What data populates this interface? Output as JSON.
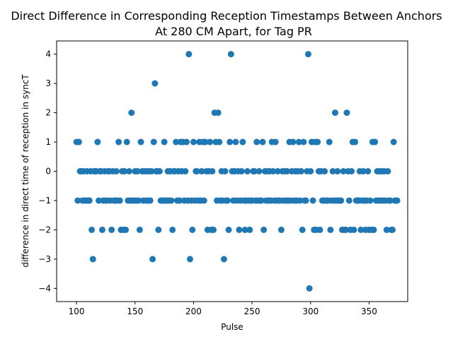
{
  "chart_data": {
    "type": "scatter",
    "title_line1": "Direct Difference in Corresponding Reception Timestamps Between Anchors",
    "title_line2": "At 280 CM Apart, for Tag PR",
    "xlabel": "Pulse",
    "ylabel": "difference in direct time of reception in syncT",
    "xlim": [
      83,
      383
    ],
    "ylim": [
      -4.45,
      4.45
    ],
    "xticks": [
      100,
      150,
      200,
      250,
      300,
      350
    ],
    "yticks": [
      -4,
      -3,
      -2,
      -1,
      0,
      1,
      2,
      3,
      4
    ],
    "grid": false,
    "marker_color": "#1f77b4",
    "points": [
      [
        100,
        1
      ],
      [
        101,
        -1
      ],
      [
        102,
        1
      ],
      [
        103,
        0
      ],
      [
        104,
        0
      ],
      [
        105,
        -1
      ],
      [
        106,
        0
      ],
      [
        107,
        -1
      ],
      [
        108,
        -1
      ],
      [
        109,
        0
      ],
      [
        110,
        -1
      ],
      [
        111,
        -1
      ],
      [
        112,
        0
      ],
      [
        113,
        -2
      ],
      [
        114,
        -3
      ],
      [
        115,
        0
      ],
      [
        116,
        0
      ],
      [
        117,
        0
      ],
      [
        118,
        1
      ],
      [
        119,
        -1
      ],
      [
        120,
        0
      ],
      [
        121,
        0
      ],
      [
        122,
        -2
      ],
      [
        123,
        -1
      ],
      [
        124,
        0
      ],
      [
        125,
        -1
      ],
      [
        126,
        -1
      ],
      [
        127,
        0
      ],
      [
        128,
        0
      ],
      [
        129,
        -1
      ],
      [
        130,
        -2
      ],
      [
        131,
        0
      ],
      [
        132,
        -1
      ],
      [
        133,
        -1
      ],
      [
        134,
        0
      ],
      [
        135,
        -1
      ],
      [
        136,
        1
      ],
      [
        137,
        -1
      ],
      [
        138,
        -2
      ],
      [
        139,
        0
      ],
      [
        140,
        -2
      ],
      [
        141,
        0
      ],
      [
        142,
        -2
      ],
      [
        143,
        1
      ],
      [
        144,
        -1
      ],
      [
        145,
        0
      ],
      [
        146,
        -1
      ],
      [
        147,
        2
      ],
      [
        148,
        -1
      ],
      [
        149,
        -1
      ],
      [
        150,
        0
      ],
      [
        151,
        -1
      ],
      [
        152,
        0
      ],
      [
        153,
        -1
      ],
      [
        154,
        -2
      ],
      [
        155,
        1
      ],
      [
        156,
        0
      ],
      [
        157,
        -1
      ],
      [
        158,
        0
      ],
      [
        159,
        -1
      ],
      [
        160,
        0
      ],
      [
        161,
        -1
      ],
      [
        162,
        0
      ],
      [
        163,
        -1
      ],
      [
        164,
        0
      ],
      [
        165,
        -3
      ],
      [
        166,
        1
      ],
      [
        167,
        3
      ],
      [
        168,
        0
      ],
      [
        169,
        0
      ],
      [
        170,
        -2
      ],
      [
        171,
        0
      ],
      [
        172,
        -1
      ],
      [
        173,
        -1
      ],
      [
        174,
        -1
      ],
      [
        175,
        1
      ],
      [
        176,
        -1
      ],
      [
        177,
        -1
      ],
      [
        178,
        0
      ],
      [
        179,
        -1
      ],
      [
        180,
        0
      ],
      [
        181,
        -1
      ],
      [
        182,
        -2
      ],
      [
        183,
        0
      ],
      [
        184,
        0
      ],
      [
        185,
        1
      ],
      [
        186,
        -1
      ],
      [
        187,
        0
      ],
      [
        188,
        -1
      ],
      [
        189,
        1
      ],
      [
        190,
        0
      ],
      [
        191,
        1
      ],
      [
        192,
        -1
      ],
      [
        193,
        0
      ],
      [
        194,
        1
      ],
      [
        195,
        -1
      ],
      [
        196,
        4
      ],
      [
        197,
        -3
      ],
      [
        198,
        -1
      ],
      [
        199,
        -2
      ],
      [
        200,
        1
      ],
      [
        201,
        -1
      ],
      [
        202,
        0
      ],
      [
        203,
        0
      ],
      [
        204,
        -1
      ],
      [
        205,
        1
      ],
      [
        206,
        -1
      ],
      [
        207,
        0
      ],
      [
        208,
        1
      ],
      [
        209,
        -1
      ],
      [
        210,
        1
      ],
      [
        211,
        0
      ],
      [
        212,
        -2
      ],
      [
        213,
        0
      ],
      [
        214,
        1
      ],
      [
        215,
        -2
      ],
      [
        216,
        0
      ],
      [
        217,
        -2
      ],
      [
        218,
        2
      ],
      [
        219,
        1
      ],
      [
        220,
        -1
      ],
      [
        221,
        2
      ],
      [
        222,
        1
      ],
      [
        223,
        -1
      ],
      [
        224,
        0
      ],
      [
        225,
        -1
      ],
      [
        226,
        -3
      ],
      [
        227,
        0
      ],
      [
        228,
        -1
      ],
      [
        229,
        -1
      ],
      [
        230,
        -2
      ],
      [
        231,
        1
      ],
      [
        232,
        4
      ],
      [
        233,
        0
      ],
      [
        234,
        -1
      ],
      [
        235,
        0
      ],
      [
        236,
        1
      ],
      [
        237,
        -1
      ],
      [
        238,
        0
      ],
      [
        239,
        -2
      ],
      [
        240,
        -1
      ],
      [
        241,
        0
      ],
      [
        242,
        1
      ],
      [
        243,
        -1
      ],
      [
        244,
        -2
      ],
      [
        245,
        -1
      ],
      [
        246,
        0
      ],
      [
        247,
        -1
      ],
      [
        248,
        -2
      ],
      [
        249,
        -1
      ],
      [
        250,
        -1
      ],
      [
        251,
        0
      ],
      [
        252,
        0
      ],
      [
        253,
        -1
      ],
      [
        254,
        1
      ],
      [
        255,
        -1
      ],
      [
        256,
        0
      ],
      [
        257,
        -1
      ],
      [
        258,
        -1
      ],
      [
        259,
        1
      ],
      [
        260,
        -2
      ],
      [
        261,
        0
      ],
      [
        262,
        -1
      ],
      [
        263,
        0
      ],
      [
        264,
        -1
      ],
      [
        265,
        0
      ],
      [
        266,
        -1
      ],
      [
        267,
        1
      ],
      [
        268,
        0
      ],
      [
        269,
        -1
      ],
      [
        270,
        1
      ],
      [
        271,
        -1
      ],
      [
        272,
        0
      ],
      [
        273,
        -1
      ],
      [
        274,
        -1
      ],
      [
        275,
        -2
      ],
      [
        276,
        0
      ],
      [
        277,
        -1
      ],
      [
        278,
        0
      ],
      [
        279,
        -1
      ],
      [
        280,
        0
      ],
      [
        281,
        -1
      ],
      [
        282,
        1
      ],
      [
        283,
        -1
      ],
      [
        284,
        0
      ],
      [
        285,
        1
      ],
      [
        286,
        -1
      ],
      [
        287,
        0
      ],
      [
        288,
        -1
      ],
      [
        289,
        0
      ],
      [
        290,
        1
      ],
      [
        291,
        -1
      ],
      [
        292,
        0
      ],
      [
        293,
        -2
      ],
      [
        294,
        1
      ],
      [
        295,
        -1
      ],
      [
        296,
        -1
      ],
      [
        297,
        0
      ],
      [
        298,
        4
      ],
      [
        299,
        -4
      ],
      [
        300,
        0
      ],
      [
        301,
        1
      ],
      [
        302,
        -1
      ],
      [
        303,
        -2
      ],
      [
        304,
        1
      ],
      [
        305,
        -2
      ],
      [
        306,
        1
      ],
      [
        307,
        0
      ],
      [
        308,
        -2
      ],
      [
        309,
        0
      ],
      [
        310,
        -1
      ],
      [
        311,
        -1
      ],
      [
        312,
        0
      ],
      [
        313,
        -1
      ],
      [
        314,
        -1
      ],
      [
        315,
        -1
      ],
      [
        316,
        1
      ],
      [
        317,
        -2
      ],
      [
        318,
        -1
      ],
      [
        319,
        0
      ],
      [
        320,
        -1
      ],
      [
        321,
        2
      ],
      [
        322,
        -1
      ],
      [
        323,
        0
      ],
      [
        324,
        -1
      ],
      [
        325,
        -1
      ],
      [
        326,
        -1
      ],
      [
        327,
        -2
      ],
      [
        328,
        0
      ],
      [
        329,
        -2
      ],
      [
        330,
        -2
      ],
      [
        331,
        2
      ],
      [
        332,
        0
      ],
      [
        333,
        -1
      ],
      [
        334,
        -2
      ],
      [
        335,
        0
      ],
      [
        336,
        1
      ],
      [
        337,
        -2
      ],
      [
        338,
        1
      ],
      [
        339,
        -1
      ],
      [
        340,
        -1
      ],
      [
        341,
        -1
      ],
      [
        342,
        0
      ],
      [
        343,
        -2
      ],
      [
        344,
        -1
      ],
      [
        345,
        0
      ],
      [
        346,
        -1
      ],
      [
        347,
        -2
      ],
      [
        348,
        -1
      ],
      [
        349,
        0
      ],
      [
        350,
        -2
      ],
      [
        351,
        -1
      ],
      [
        352,
        -2
      ],
      [
        353,
        1
      ],
      [
        354,
        -2
      ],
      [
        355,
        1
      ],
      [
        356,
        -1
      ],
      [
        357,
        0
      ],
      [
        358,
        -1
      ],
      [
        359,
        0
      ],
      [
        360,
        -1
      ],
      [
        361,
        0
      ],
      [
        362,
        -1
      ],
      [
        363,
        0
      ],
      [
        364,
        -1
      ],
      [
        365,
        -2
      ],
      [
        366,
        0
      ],
      [
        367,
        -1
      ],
      [
        368,
        -1
      ],
      [
        369,
        -2
      ],
      [
        370,
        -2
      ],
      [
        371,
        1
      ],
      [
        372,
        -1
      ],
      [
        373,
        -1
      ],
      [
        374,
        -1
      ]
    ]
  }
}
